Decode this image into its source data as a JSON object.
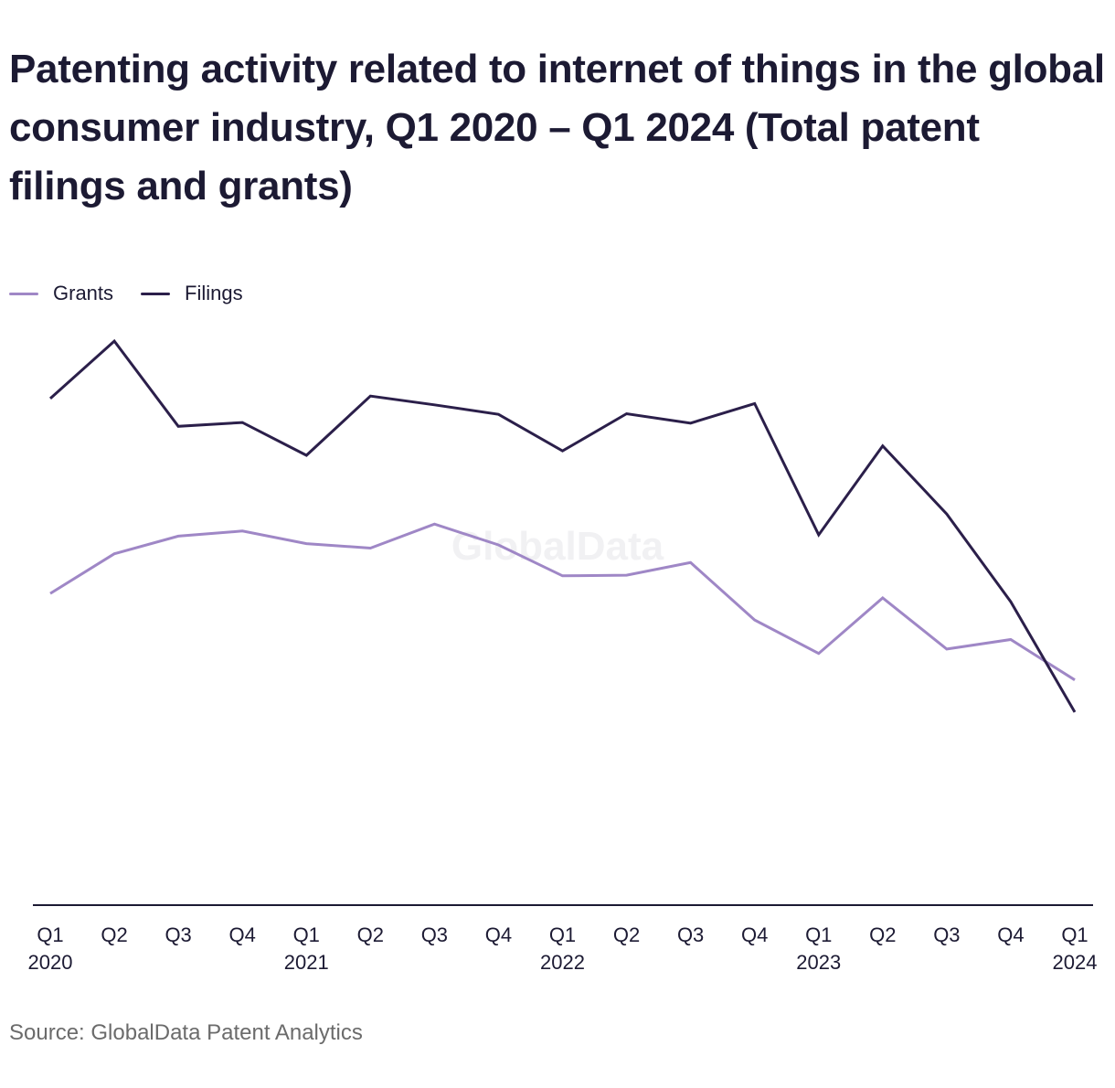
{
  "title": "Patenting activity related to internet of things in the global consumer industry, Q1 2020 – Q1 2024 (Total patent filings and grants)",
  "source": "Source: GlobalData Patent Analytics",
  "watermark": "GlobalData",
  "colors": {
    "grants": "#9f87c6",
    "filings": "#2b1f4a",
    "axis": "#1c1a33",
    "text": "#1c1a33",
    "source_text": "#6b6b6b"
  },
  "legend": [
    {
      "name": "Grants",
      "color": "#9f87c6"
    },
    {
      "name": "Filings",
      "color": "#2b1f4a"
    }
  ],
  "chart_data": {
    "type": "line",
    "title": "Patenting activity related to internet of things in the global consumer industry, Q1 2020 – Q1 2024 (Total patent filings and grants)",
    "xlabel": "",
    "ylabel": "",
    "categories": [
      "Q1 2020",
      "Q2 2020",
      "Q3 2020",
      "Q4 2020",
      "Q1 2021",
      "Q2 2021",
      "Q3 2021",
      "Q4 2021",
      "Q1 2022",
      "Q2 2022",
      "Q3 2022",
      "Q4 2022",
      "Q1 2023",
      "Q2 2023",
      "Q3 2023",
      "Q4 2023",
      "Q1 2024"
    ],
    "tick_labels": [
      {
        "quarter": "Q1",
        "year": "2020"
      },
      {
        "quarter": "Q2",
        "year": ""
      },
      {
        "quarter": "Q3",
        "year": ""
      },
      {
        "quarter": "Q4",
        "year": ""
      },
      {
        "quarter": "Q1",
        "year": "2021"
      },
      {
        "quarter": "Q2",
        "year": ""
      },
      {
        "quarter": "Q3",
        "year": ""
      },
      {
        "quarter": "Q4",
        "year": ""
      },
      {
        "quarter": "Q1",
        "year": "2022"
      },
      {
        "quarter": "Q2",
        "year": ""
      },
      {
        "quarter": "Q3",
        "year": ""
      },
      {
        "quarter": "Q4",
        "year": ""
      },
      {
        "quarter": "Q1",
        "year": "2023"
      },
      {
        "quarter": "Q2",
        "year": ""
      },
      {
        "quarter": "Q3",
        "year": ""
      },
      {
        "quarter": "Q4",
        "year": ""
      },
      {
        "quarter": "Q1",
        "year": "2024"
      }
    ],
    "ylim": [
      0,
      1000
    ],
    "grid": false,
    "legend_position": "top-left",
    "series": [
      {
        "name": "Grants",
        "color": "#9f87c6",
        "values": [
          494,
          557,
          585,
          593,
          573,
          566,
          604,
          571,
          522,
          523,
          543,
          452,
          399,
          487,
          406,
          421,
          357
        ]
      },
      {
        "name": "Filings",
        "color": "#2b1f4a",
        "values": [
          803,
          894,
          759,
          765,
          713,
          807,
          793,
          778,
          720,
          779,
          764,
          795,
          587,
          728,
          620,
          481,
          306
        ]
      }
    ]
  }
}
